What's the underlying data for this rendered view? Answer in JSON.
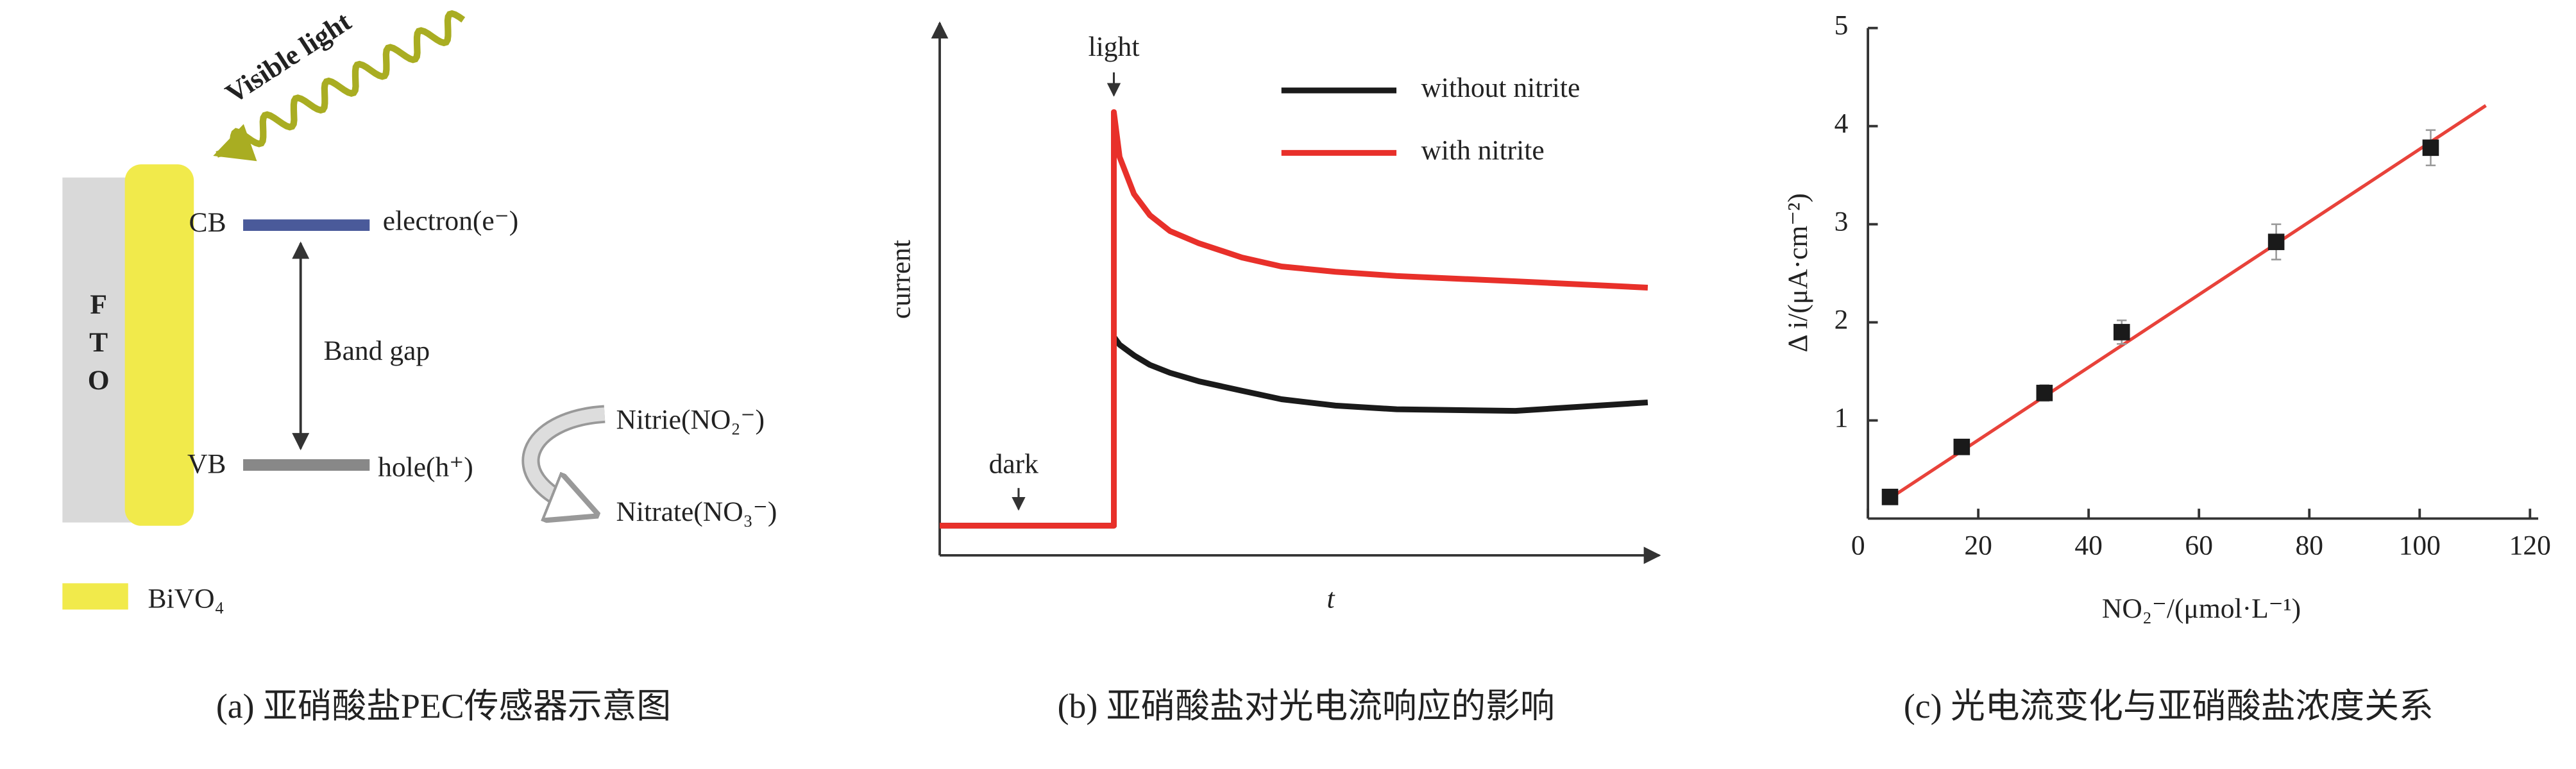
{
  "diagram": {
    "light": "Visible light",
    "fto": [
      "F",
      "T",
      "O"
    ],
    "cb": "CB",
    "vb": "VB",
    "electron": "electron(e⁻)",
    "hole": "hole(h⁺)",
    "band_gap": "Band gap",
    "nitrite": "Nitrie(NO₂⁻)",
    "nitrate": "Nitrate(NO₃⁻)",
    "legend": "BiVO₄"
  },
  "captions": [
    "(a) 亚硝酸盐PEC传感器示意图",
    "(b) 亚硝酸盐对光电流响应的影响",
    "(c) 光电流变化与亚硝酸盐浓度关系"
  ],
  "chart_data": [
    {
      "type": "line",
      "xlabel": "t",
      "ylabel": "current",
      "annotations": [
        "light",
        "dark"
      ],
      "xlim": [
        0,
        100
      ],
      "ylim": [
        0,
        100
      ],
      "series": [
        {
          "name": "without nitrite",
          "color": "#1a1a1a",
          "x": [
            0,
            24.2,
            24.2,
            25,
            27,
            29.2,
            32,
            36,
            42,
            47.5,
            55,
            63.5,
            80,
            98.4
          ],
          "values": [
            5.3,
            5.3,
            41,
            39.5,
            37.5,
            35.7,
            34.2,
            32.6,
            30.8,
            29.2,
            28,
            27.3,
            27,
            28.6
          ]
        },
        {
          "name": "with nitrite",
          "color": "#e8302a",
          "x": [
            0,
            24.2,
            24.2,
            25,
            27,
            29.2,
            32,
            36,
            42,
            47.5,
            55,
            63.5,
            80,
            98.4
          ],
          "values": [
            5.3,
            5.3,
            83.5,
            75,
            68,
            64,
            61,
            58.7,
            56,
            54.3,
            53.3,
            52.5,
            51.5,
            50.3
          ]
        }
      ]
    },
    {
      "type": "scatter",
      "xlabel": "NO₂⁻/(μmol·L⁻¹)",
      "ylabel": "Δ i/(μA·cm⁻²)",
      "x": [
        4,
        17,
        32,
        46,
        74,
        102
      ],
      "values": [
        0.22,
        0.73,
        1.28,
        1.9,
        2.82,
        3.78
      ],
      "errors": [
        0.05,
        0.06,
        0.08,
        0.12,
        0.18,
        0.18
      ],
      "color": "#1a1a1a",
      "fit": {
        "x": [
          3,
          112
        ],
        "values": [
          0.17,
          4.21
        ],
        "color": "#e8423a"
      },
      "xlim": [
        0,
        120
      ],
      "ylim": [
        0,
        5
      ],
      "xticks": [
        0,
        20,
        40,
        60,
        80,
        100,
        120
      ],
      "yticks": [
        1,
        2,
        3,
        4,
        5
      ]
    }
  ]
}
